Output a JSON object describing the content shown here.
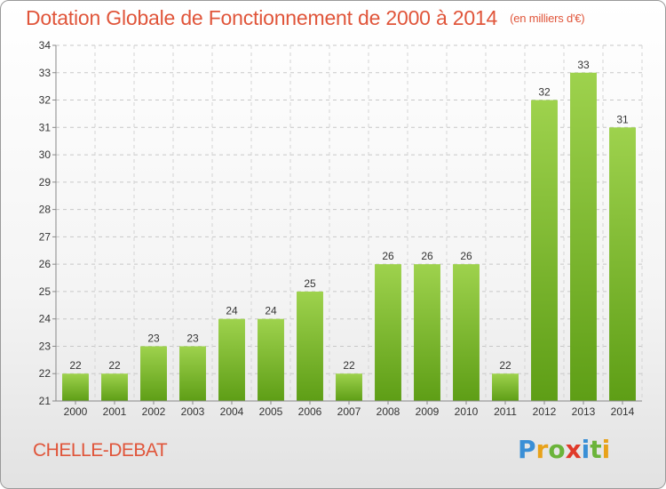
{
  "title": "Dotation Globale de Fonctionnement de 2000 à 2014",
  "unit": "(en milliers d'€)",
  "commune": "CHELLE-DEBAT",
  "logo": {
    "letters": [
      "P",
      "r",
      "o",
      "x",
      "i",
      "t",
      "i"
    ],
    "colors": [
      "#3a8fd6",
      "#e8a21a",
      "#6bb43a",
      "#e03a2a",
      "#3a8fd6",
      "#6bb43a",
      "#e8a21a"
    ]
  },
  "chart_data": {
    "type": "bar",
    "categories": [
      "2000",
      "2001",
      "2002",
      "2003",
      "2004",
      "2005",
      "2006",
      "2007",
      "2008",
      "2009",
      "2010",
      "2011",
      "2012",
      "2013",
      "2014"
    ],
    "values": [
      22,
      22,
      23,
      23,
      24,
      24,
      25,
      22,
      26,
      26,
      26,
      22,
      32,
      33,
      31
    ],
    "ylim": [
      21,
      34
    ],
    "yticks": [
      21,
      22,
      23,
      24,
      25,
      26,
      27,
      28,
      29,
      30,
      31,
      32,
      33,
      34
    ],
    "grid": true,
    "bar_color": "#7ebd2e",
    "title": "Dotation Globale de Fonctionnement de 2000 à 2014",
    "xlabel": "",
    "ylabel": ""
  }
}
